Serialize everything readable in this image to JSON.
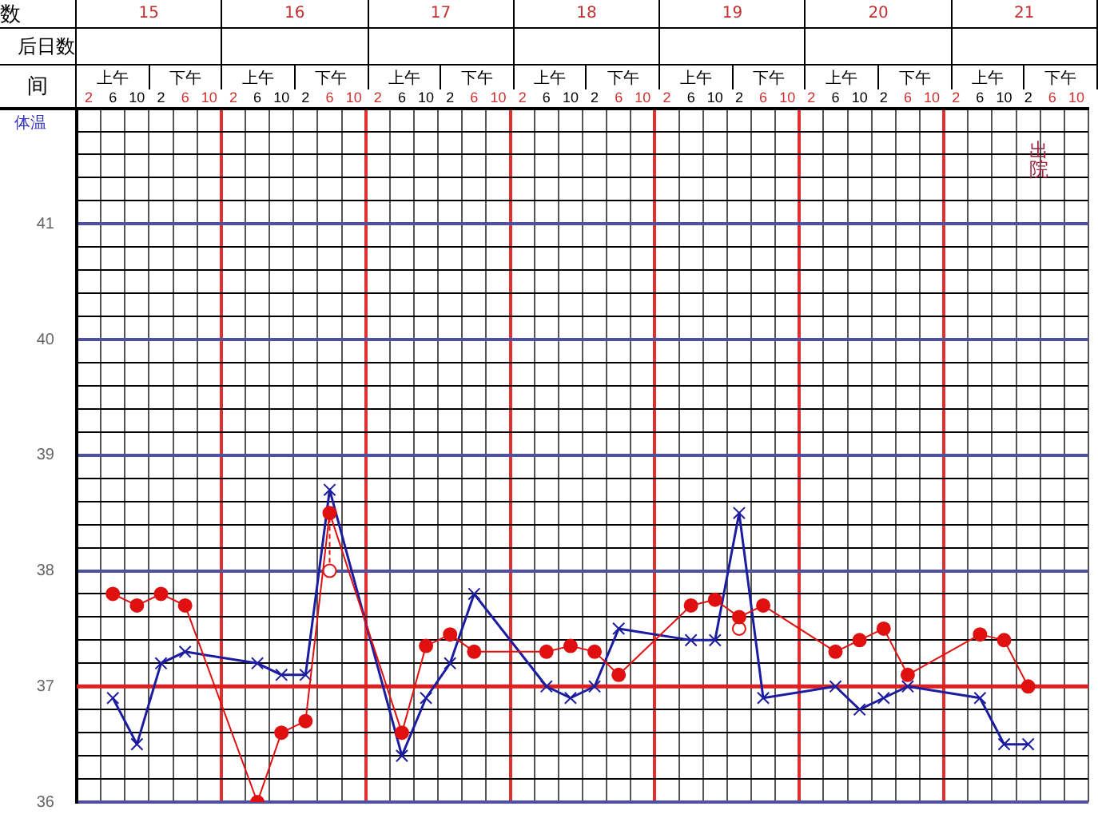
{
  "chart_data": {
    "type": "line",
    "ylabel": "体温",
    "annotations": [
      "数",
      "后日数",
      "间",
      "15",
      "16",
      "17",
      "18",
      "19",
      "20",
      "21",
      "上午",
      "下午",
      "出院"
    ],
    "categories": [
      "2",
      "6",
      "10",
      "2",
      "6",
      "10",
      "2",
      "6",
      "10",
      "2",
      "6",
      "10",
      "2",
      "6",
      "10",
      "2",
      "6",
      "10",
      "2",
      "6",
      "10",
      "2",
      "6",
      "10",
      "2",
      "6",
      "10",
      "2",
      "6",
      "10",
      "2",
      "6",
      "10",
      "2",
      "6",
      "10",
      "2",
      "6",
      "10",
      "2",
      "6",
      "10"
    ],
    "series": [
      {
        "type": "line",
        "color": "#e01010",
        "marker": "circle",
        "values": [
          null,
          37.8,
          37.7,
          37.8,
          37.7,
          null,
          null,
          36.0,
          36.6,
          36.7,
          38.5,
          null,
          null,
          36.6,
          37.35,
          37.45,
          37.3,
          null,
          null,
          37.3,
          37.35,
          37.3,
          37.1,
          null,
          null,
          37.7,
          37.75,
          37.6,
          37.7,
          null,
          null,
          37.3,
          37.4,
          37.5,
          37.1,
          null,
          null,
          37.45,
          37.4,
          37.0,
          null,
          null
        ]
      },
      {
        "type": "line",
        "color": "#1c1ca0",
        "marker": "cross",
        "values": [
          null,
          36.9,
          36.5,
          37.2,
          37.3,
          null,
          null,
          37.2,
          37.1,
          37.1,
          38.7,
          null,
          null,
          36.4,
          36.9,
          37.2,
          37.8,
          null,
          null,
          37.0,
          36.9,
          37.0,
          37.5,
          null,
          null,
          37.4,
          37.4,
          38.5,
          36.9,
          null,
          null,
          37.0,
          36.8,
          36.9,
          37.0,
          null,
          null,
          36.9,
          36.5,
          36.5,
          null,
          null
        ]
      },
      {
        "type": "scatter",
        "color": "#e01010",
        "marker": "circle",
        "line_style": "dashed",
        "errors": [
          null,
          null,
          null,
          null,
          null,
          null,
          null,
          null,
          null,
          null,
          [
            38.0,
            38.5
          ],
          null,
          null,
          null,
          null,
          null,
          null,
          null,
          null,
          null,
          null,
          null,
          null,
          null,
          null,
          null,
          null,
          [
            37.5,
            37.6
          ],
          null,
          null,
          null,
          null,
          null,
          null,
          null,
          null,
          null,
          null,
          null,
          null,
          null,
          null
        ],
        "values": [
          null,
          null,
          null,
          null,
          null,
          null,
          null,
          null,
          null,
          null,
          38.0,
          null,
          null,
          null,
          null,
          null,
          null,
          null,
          null,
          null,
          null,
          null,
          null,
          null,
          null,
          null,
          null,
          37.5,
          null,
          null,
          null,
          null,
          null,
          null,
          null,
          null,
          null,
          null,
          null,
          null,
          null,
          null
        ]
      }
    ],
    "ylim": [
      36,
      42
    ],
    "yticks": [
      36,
      {
        "value": 36.2,
        "label": null
      },
      {
        "value": 36.4,
        "label": null
      },
      {
        "value": 36.6,
        "label": null
      },
      {
        "value": 36.8,
        "label": null
      },
      37,
      {
        "value": 37.2,
        "label": null
      },
      {
        "value": 37.4,
        "label": null
      },
      {
        "value": 37.6,
        "label": null
      },
      {
        "value": 37.8,
        "label": null
      },
      38,
      {
        "value": 38.2,
        "label": null
      },
      {
        "value": 38.4,
        "label": null
      },
      {
        "value": 38.6,
        "label": null
      },
      {
        "value": 38.8,
        "label": null
      },
      39,
      {
        "value": 39.2,
        "label": null
      },
      {
        "value": 39.4,
        "label": null
      },
      {
        "value": 39.6,
        "label": null
      },
      {
        "value": 39.8,
        "label": null
      },
      40,
      {
        "value": 40.2,
        "label": null
      },
      {
        "value": 40.4,
        "label": null
      },
      {
        "value": 40.6,
        "label": null
      },
      {
        "value": 40.8,
        "label": null
      },
      41,
      {
        "value": 41.2,
        "label": null
      },
      {
        "value": 41.4,
        "label": null
      },
      {
        "value": 41.6,
        "label": null
      },
      {
        "value": 41.8,
        "label": null
      },
      {
        "value": 42,
        "label": null
      }
    ],
    "ref_lines": [
      {
        "axis": "y",
        "value": 37,
        "color": "#e02020"
      }
    ],
    "grid": true,
    "legend": false
  }
}
